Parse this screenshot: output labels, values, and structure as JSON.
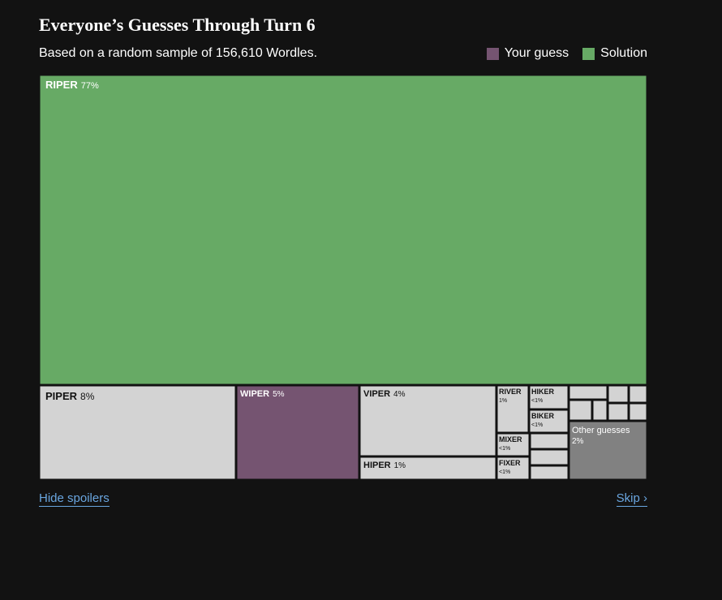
{
  "header": {
    "title": "Everyone’s Guesses Through Turn 6",
    "subtitle": "Based on a random sample of 156,610 Wordles."
  },
  "legend": {
    "your_guess_label": "Your guess",
    "solution_label": "Solution"
  },
  "colors": {
    "solution": "#67aa65",
    "your_guess": "#755471",
    "other_word": "#d3d3d3",
    "other_guesses": "#818181",
    "border": "#121212",
    "link": "#6aa6e0"
  },
  "chart_data": {
    "type": "treemap",
    "title": "Everyone’s Guesses Through Turn 6",
    "subtitle": "Based on a random sample of 156,610 Wordles.",
    "items": [
      {
        "word": "RIPER",
        "pct": "77%",
        "role": "solution"
      },
      {
        "word": "PIPER",
        "pct": "8%",
        "role": "other"
      },
      {
        "word": "WIPER",
        "pct": "5%",
        "role": "your_guess"
      },
      {
        "word": "VIPER",
        "pct": "4%",
        "role": "other"
      },
      {
        "word": "HIPER",
        "pct": "1%",
        "role": "other"
      },
      {
        "word": "RIVER",
        "pct": "1%",
        "role": "other"
      },
      {
        "word": "HIKER",
        "pct": "<1%",
        "role": "other"
      },
      {
        "word": "BIKER",
        "pct": "<1%",
        "role": "other"
      },
      {
        "word": "MIXER",
        "pct": "<1%",
        "role": "other"
      },
      {
        "word": "FIXER",
        "pct": "<1%",
        "role": "other"
      },
      {
        "word": "Other guesses",
        "pct": "2%",
        "role": "other_guesses"
      }
    ]
  },
  "footer": {
    "hide_spoilers_label": "Hide spoilers",
    "skip_label": "Skip ›"
  }
}
